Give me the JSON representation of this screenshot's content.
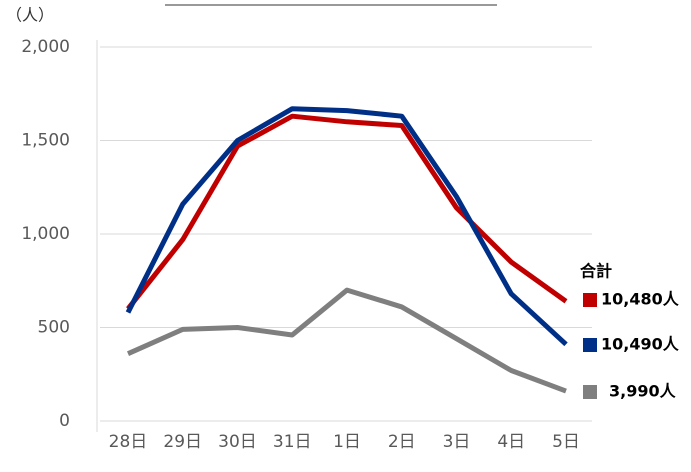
{
  "chart_data": {
    "type": "line",
    "y_axis_label": "（人）",
    "legend_title": "合計",
    "categories": [
      "28日",
      "29日",
      "30日",
      "31日",
      "1日",
      "2日",
      "3日",
      "4日",
      "5日"
    ],
    "series": [
      {
        "name": "10,480人",
        "color": "#c00000",
        "values": [
          600,
          970,
          1470,
          1630,
          1600,
          1580,
          1140,
          850,
          640
        ]
      },
      {
        "name": "10,490人",
        "color": "#002f87",
        "values": [
          580,
          1160,
          1500,
          1670,
          1660,
          1630,
          1200,
          680,
          410
        ]
      },
      {
        "name": "3,990人",
        "color": "#7f7f7f",
        "values": [
          360,
          490,
          500,
          460,
          700,
          610,
          440,
          270,
          160
        ]
      }
    ],
    "ylim": [
      0,
      2000
    ],
    "yticks": [
      0,
      500,
      {
        "value": 1000,
        "label": "1,000"
      },
      {
        "value": 1500,
        "label": "1,500"
      },
      {
        "value": 2000,
        "label": "2,000"
      }
    ],
    "grid": true,
    "legend": "right"
  }
}
